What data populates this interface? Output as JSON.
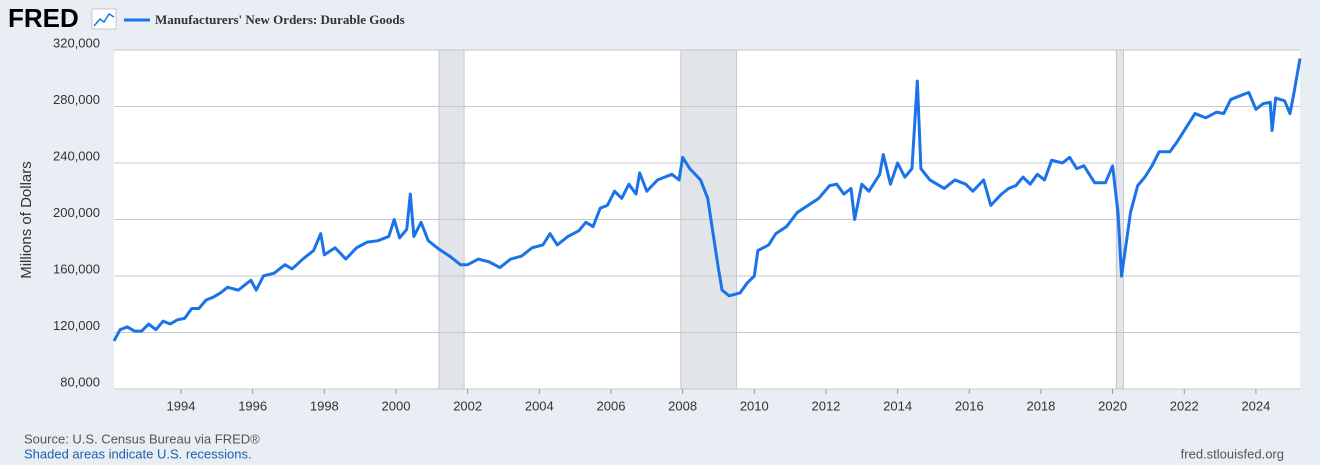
{
  "chart_data": {
    "type": "line",
    "logo": "FRED",
    "title": "Manufacturers' New Orders: Durable Goods",
    "y_label": "Millions of Dollars",
    "source": "Source: U.S. Census Bureau via FRED®",
    "note": "Shaded areas indicate U.S. recessions.",
    "url": "fred.stlouisfed.org",
    "xlim": [
      1992.13,
      2025.23
    ],
    "xticks": [
      1994,
      1996,
      1998,
      2000,
      2002,
      2004,
      2006,
      2008,
      2010,
      2012,
      2014,
      2016,
      2018,
      2020,
      2022,
      2024
    ],
    "ylim": [
      80000,
      320000
    ],
    "yticks": [
      {
        "value": 80000,
        "label": "80,000"
      },
      {
        "value": 120000,
        "label": "120,000"
      },
      {
        "value": 160000,
        "label": "160,000"
      },
      {
        "value": 200000,
        "label": "200,000"
      },
      {
        "value": 240000,
        "label": "240,000"
      },
      {
        "value": 280000,
        "label": "280,000"
      },
      {
        "value": 320000,
        "label": "320,000"
      }
    ],
    "grid": true,
    "recessions": [
      [
        2001.2,
        2001.9
      ],
      [
        2007.95,
        2009.5
      ],
      [
        2020.1,
        2020.3
      ]
    ],
    "recession_color": "#e1e5ea",
    "x": [
      1992.13,
      1992.3,
      1992.5,
      1992.7,
      1992.9,
      1993.1,
      1993.3,
      1993.5,
      1993.7,
      1993.9,
      1994.1,
      1994.3,
      1994.5,
      1994.7,
      1994.9,
      1995.1,
      1995.3,
      1995.6,
      1995.8,
      1995.95,
      1996.1,
      1996.3,
      1996.6,
      1996.9,
      1997.1,
      1997.4,
      1997.7,
      1997.9,
      1998.0,
      1998.3,
      1998.6,
      1998.9,
      1999.2,
      1999.5,
      1999.8,
      1999.95,
      2000.1,
      2000.3,
      2000.4,
      2000.5,
      2000.7,
      2000.9,
      2001.2,
      2001.5,
      2001.8,
      2002.0,
      2002.3,
      2002.6,
      2002.9,
      2003.2,
      2003.5,
      2003.8,
      2004.1,
      2004.3,
      2004.5,
      2004.8,
      2005.1,
      2005.3,
      2005.5,
      2005.7,
      2005.9,
      2006.1,
      2006.3,
      2006.5,
      2006.7,
      2006.8,
      2007.0,
      2007.3,
      2007.5,
      2007.7,
      2007.9,
      2008.0,
      2008.2,
      2008.5,
      2008.7,
      2008.85,
      2009.0,
      2009.1,
      2009.3,
      2009.6,
      2009.8,
      2010.0,
      2010.1,
      2010.4,
      2010.6,
      2010.9,
      2011.2,
      2011.5,
      2011.8,
      2012.1,
      2012.3,
      2012.5,
      2012.7,
      2012.8,
      2013.0,
      2013.2,
      2013.5,
      2013.6,
      2013.8,
      2014.0,
      2014.2,
      2014.4,
      2014.55,
      2014.65,
      2014.9,
      2015.1,
      2015.3,
      2015.6,
      2015.9,
      2016.1,
      2016.4,
      2016.6,
      2016.9,
      2017.1,
      2017.3,
      2017.5,
      2017.7,
      2017.9,
      2018.1,
      2018.3,
      2018.6,
      2018.8,
      2019.0,
      2019.2,
      2019.5,
      2019.8,
      2020.0,
      2020.15,
      2020.25,
      2020.5,
      2020.7,
      2020.9,
      2021.1,
      2021.3,
      2021.6,
      2021.8,
      2022.0,
      2022.3,
      2022.6,
      2022.9,
      2023.1,
      2023.3,
      2023.6,
      2023.8,
      2024.0,
      2024.2,
      2024.4,
      2024.45,
      2024.55,
      2024.8,
      2024.95,
      2025.05,
      2025.23
    ],
    "series": [
      {
        "name": "Manufacturers' New Orders: Durable Goods",
        "color": "#1a73e8",
        "values": [
          114000,
          122000,
          124000,
          121000,
          121000,
          126000,
          122000,
          128000,
          126000,
          129000,
          130000,
          137000,
          137000,
          143000,
          145000,
          148000,
          152000,
          150000,
          154000,
          157000,
          150000,
          160000,
          162000,
          168000,
          165000,
          172000,
          178000,
          190000,
          175000,
          180000,
          172000,
          180000,
          184000,
          185000,
          188000,
          200000,
          187000,
          193000,
          218000,
          188000,
          198000,
          185000,
          179000,
          174000,
          168000,
          168000,
          172000,
          170000,
          166000,
          172000,
          174000,
          180000,
          182000,
          190000,
          182000,
          188000,
          192000,
          198000,
          195000,
          208000,
          210000,
          220000,
          215000,
          225000,
          218000,
          233000,
          220000,
          228000,
          230000,
          232000,
          228000,
          244000,
          236000,
          228000,
          215000,
          190000,
          165000,
          150000,
          146000,
          148000,
          155000,
          160000,
          178000,
          182000,
          190000,
          195000,
          205000,
          210000,
          215000,
          224000,
          225000,
          218000,
          222000,
          200000,
          225000,
          220000,
          232000,
          246000,
          225000,
          240000,
          230000,
          236000,
          298000,
          236000,
          228000,
          225000,
          222000,
          228000,
          225000,
          220000,
          228000,
          210000,
          218000,
          222000,
          224000,
          230000,
          225000,
          232000,
          228000,
          242000,
          240000,
          244000,
          236000,
          238000,
          226000,
          226000,
          238000,
          205000,
          160000,
          205000,
          224000,
          230000,
          238000,
          248000,
          248000,
          255000,
          263000,
          275000,
          272000,
          276000,
          275000,
          285000,
          288000,
          290000,
          278000,
          282000,
          283000,
          263000,
          286000,
          284000,
          275000,
          288000,
          314000
        ]
      }
    ]
  }
}
